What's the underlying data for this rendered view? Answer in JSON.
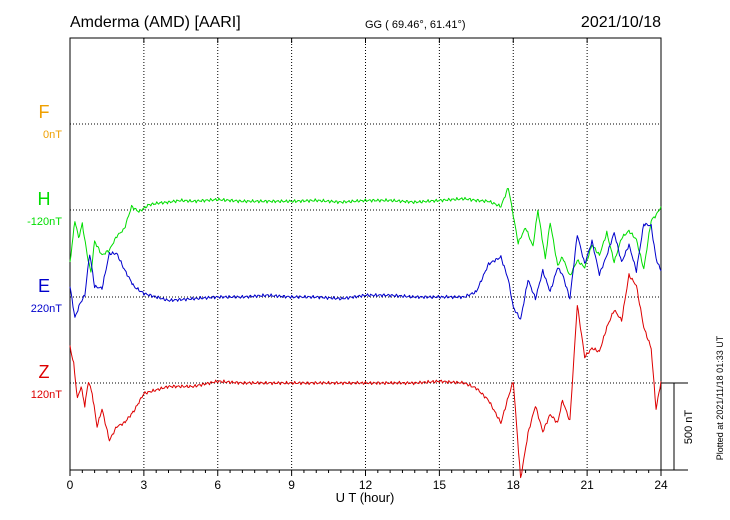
{
  "header": {
    "station": "Amderma (AMD)  [AARI]",
    "coords": "GG ( 69.46°,  61.41°)",
    "date": "2021/10/18"
  },
  "footer_note": "Plotted at 2021/11/18 01:33 UT",
  "scale_bar": {
    "label": "500 nT",
    "value": 500
  },
  "colors": {
    "F": "#f0a000",
    "H": "#00dd00",
    "E": "#0000cc",
    "Z": "#dd0000",
    "axis": "#000000",
    "grid": "#000000"
  },
  "chart_data": {
    "type": "line",
    "xlabel": "U T (hour)",
    "xlim": [
      0,
      24
    ],
    "xticks": [
      "0",
      "3",
      "6",
      "9",
      "12",
      "15",
      "18",
      "21",
      "24"
    ],
    "tick_values": [
      0,
      3,
      6,
      9,
      12,
      15,
      18,
      21,
      24
    ],
    "series": [
      {
        "key": "F",
        "name": "F",
        "baseline_label": "0nT",
        "baseline": 0,
        "points": []
      },
      {
        "key": "H",
        "name": "H",
        "baseline_label": "-120nT",
        "baseline": -120,
        "points": [
          [
            0,
            -300
          ],
          [
            0.2,
            -60
          ],
          [
            0.35,
            -160
          ],
          [
            0.5,
            -80
          ],
          [
            0.7,
            -260
          ],
          [
            0.85,
            -360
          ],
          [
            1,
            -180
          ],
          [
            1.3,
            -260
          ],
          [
            1.6,
            -230
          ],
          [
            1.9,
            -150
          ],
          [
            2.2,
            -110
          ],
          [
            2.5,
            20
          ],
          [
            2.8,
            -10
          ],
          [
            3.2,
            30
          ],
          [
            3.6,
            40
          ],
          [
            4,
            45
          ],
          [
            4.5,
            55
          ],
          [
            5,
            50
          ],
          [
            5.5,
            55
          ],
          [
            6,
            60
          ],
          [
            6.5,
            55
          ],
          [
            7,
            50
          ],
          [
            8,
            50
          ],
          [
            9,
            50
          ],
          [
            10,
            55
          ],
          [
            11,
            45
          ],
          [
            12,
            55
          ],
          [
            13,
            55
          ],
          [
            14,
            45
          ],
          [
            15,
            55
          ],
          [
            16,
            65
          ],
          [
            16.5,
            55
          ],
          [
            17,
            50
          ],
          [
            17.5,
            20
          ],
          [
            17.8,
            130
          ],
          [
            18.2,
            -190
          ],
          [
            18.5,
            -100
          ],
          [
            18.8,
            -210
          ],
          [
            19,
            0
          ],
          [
            19.3,
            -280
          ],
          [
            19.5,
            -70
          ],
          [
            19.8,
            -320
          ],
          [
            20,
            -270
          ],
          [
            20.3,
            -380
          ],
          [
            20.6,
            -290
          ],
          [
            20.9,
            -330
          ],
          [
            21.2,
            -200
          ],
          [
            21.5,
            -260
          ],
          [
            21.8,
            -130
          ],
          [
            22.1,
            -300
          ],
          [
            22.4,
            -160
          ],
          [
            22.7,
            -120
          ],
          [
            23,
            -170
          ],
          [
            23.3,
            -340
          ],
          [
            23.6,
            -60
          ],
          [
            23.8,
            -30
          ],
          [
            24,
            20
          ]
        ]
      },
      {
        "key": "E",
        "name": "E",
        "baseline_label": "220nT",
        "baseline": 220,
        "points": [
          [
            0,
            60
          ],
          [
            0.2,
            -120
          ],
          [
            0.4,
            -40
          ],
          [
            0.6,
            10
          ],
          [
            0.8,
            250
          ],
          [
            1,
            60
          ],
          [
            1.3,
            50
          ],
          [
            1.6,
            250
          ],
          [
            1.9,
            250
          ],
          [
            2.2,
            160
          ],
          [
            2.6,
            60
          ],
          [
            3,
            20
          ],
          [
            3.5,
            0
          ],
          [
            4,
            -20
          ],
          [
            5,
            -10
          ],
          [
            6,
            0
          ],
          [
            7,
            0
          ],
          [
            8,
            10
          ],
          [
            9,
            0
          ],
          [
            10,
            0
          ],
          [
            11,
            -10
          ],
          [
            12,
            10
          ],
          [
            13,
            10
          ],
          [
            14,
            0
          ],
          [
            15,
            0
          ],
          [
            16,
            0
          ],
          [
            16.5,
            30
          ],
          [
            17,
            190
          ],
          [
            17.5,
            230
          ],
          [
            17.8,
            100
          ],
          [
            18,
            -60
          ],
          [
            18.3,
            -130
          ],
          [
            18.6,
            100
          ],
          [
            18.9,
            -10
          ],
          [
            19.2,
            150
          ],
          [
            19.5,
            30
          ],
          [
            19.8,
            170
          ],
          [
            20,
            130
          ],
          [
            20.3,
            -10
          ],
          [
            20.6,
            360
          ],
          [
            20.9,
            190
          ],
          [
            21.2,
            320
          ],
          [
            21.5,
            130
          ],
          [
            21.8,
            240
          ],
          [
            22.1,
            370
          ],
          [
            22.4,
            200
          ],
          [
            22.7,
            300
          ],
          [
            23,
            150
          ],
          [
            23.3,
            420
          ],
          [
            23.6,
            410
          ],
          [
            23.8,
            220
          ],
          [
            24,
            150
          ]
        ]
      },
      {
        "key": "Z",
        "name": "Z",
        "baseline_label": "120nT",
        "baseline": 120,
        "points": [
          [
            0,
            210
          ],
          [
            0.15,
            110
          ],
          [
            0.3,
            -90
          ],
          [
            0.45,
            -20
          ],
          [
            0.6,
            -130
          ],
          [
            0.75,
            10
          ],
          [
            0.9,
            -60
          ],
          [
            1.1,
            -250
          ],
          [
            1.3,
            -150
          ],
          [
            1.6,
            -330
          ],
          [
            1.9,
            -250
          ],
          [
            2.2,
            -230
          ],
          [
            2.6,
            -160
          ],
          [
            3,
            -60
          ],
          [
            3.5,
            -40
          ],
          [
            4,
            -20
          ],
          [
            5,
            -20
          ],
          [
            6,
            10
          ],
          [
            7,
            0
          ],
          [
            8,
            0
          ],
          [
            9,
            0
          ],
          [
            10,
            0
          ],
          [
            11,
            0
          ],
          [
            12,
            0
          ],
          [
            13,
            0
          ],
          [
            14,
            0
          ],
          [
            15,
            10
          ],
          [
            16,
            0
          ],
          [
            16.5,
            -30
          ],
          [
            17,
            -100
          ],
          [
            17.5,
            -230
          ],
          [
            17.8,
            -80
          ],
          [
            18,
            10
          ],
          [
            18.3,
            -550
          ],
          [
            18.6,
            -290
          ],
          [
            18.9,
            -130
          ],
          [
            19.2,
            -280
          ],
          [
            19.5,
            -180
          ],
          [
            19.8,
            -230
          ],
          [
            20,
            -100
          ],
          [
            20.3,
            -220
          ],
          [
            20.6,
            450
          ],
          [
            20.9,
            150
          ],
          [
            21.2,
            200
          ],
          [
            21.5,
            180
          ],
          [
            21.8,
            320
          ],
          [
            22.1,
            420
          ],
          [
            22.4,
            360
          ],
          [
            22.7,
            620
          ],
          [
            23,
            560
          ],
          [
            23.3,
            320
          ],
          [
            23.6,
            200
          ],
          [
            23.8,
            -150
          ],
          [
            24,
            10
          ]
        ]
      }
    ]
  }
}
